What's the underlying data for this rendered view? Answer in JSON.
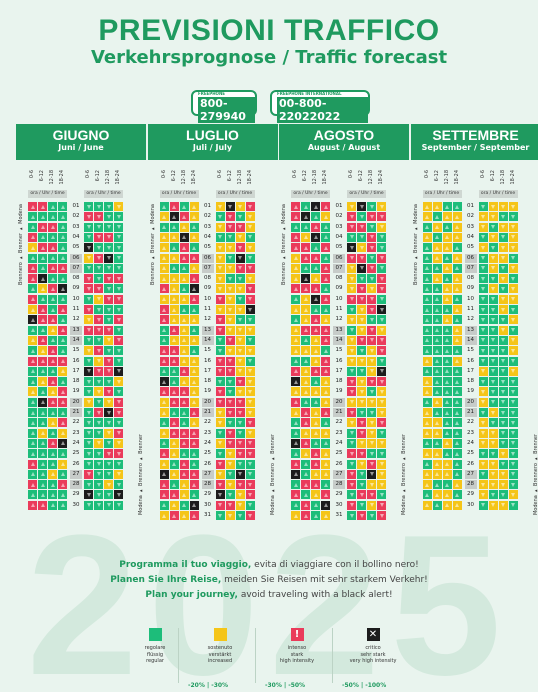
{
  "header": {
    "title": "PREVISIONI TRAFFICO",
    "subtitle": "Verkehrsprognose / Traffic forecast"
  },
  "phones": [
    {
      "label": "FREEPHONE",
      "number": "800-279940"
    },
    {
      "label": "FREEPHONE INTERNATIONAL",
      "number": "00-800-22022022"
    }
  ],
  "hours_label": "ora / Uhr / time",
  "time_slots": [
    "0-6",
    "6-12",
    "12-18",
    "18-24"
  ],
  "route_up": "Brennero ▸ Brenner ▸ Modena",
  "route_down": "Modena ▸ Brennero ▸ Brenner",
  "months": [
    {
      "name": "GIUGNO",
      "sub": "Juni / June"
    },
    {
      "name": "LUGLIO",
      "sub": "Juli / July"
    },
    {
      "name": "AGOSTO",
      "sub": "August / August"
    },
    {
      "name": "SETTEMBRE",
      "sub": "September / September"
    }
  ],
  "slogans": [
    {
      "strong": "Programma il tuo viaggio,",
      "rest": " evita di viaggiare con il bollino nero!"
    },
    {
      "strong": "Planen Sie Ihre Reise,",
      "rest": " meiden Sie Reisen mit sehr starkem Verkehr!"
    },
    {
      "strong": "Plan your journey,",
      "rest": " avoid traveling with a black alert!"
    }
  ],
  "legend": [
    {
      "icon": "",
      "text": [
        "regolare",
        "flüssig",
        "regular"
      ],
      "color": "#1dbd7a"
    },
    {
      "icon": "",
      "text": [
        "sostenuto",
        "verstärkt",
        "increased"
      ],
      "color": "#f5c518"
    },
    {
      "icon": "!",
      "text": [
        "intenso",
        "stark",
        "high intensity"
      ],
      "color": "#ea3b5b"
    },
    {
      "icon": "✕",
      "text": [
        "critico",
        "sehr stark",
        "very high intensity"
      ],
      "color": "#1c1c1c"
    }
  ],
  "percentages": [
    "-20% | -30%",
    "-30% | -50%",
    "-50% | -100%"
  ],
  "year": "2025"
}
